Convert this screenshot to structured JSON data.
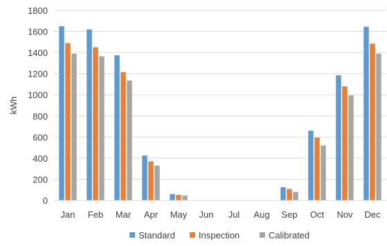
{
  "chart_data": {
    "type": "bar",
    "title": "",
    "xlabel": "",
    "ylabel": "kWh",
    "ylim": [
      0,
      1800
    ],
    "yticks": [
      0,
      200,
      400,
      600,
      800,
      1000,
      1200,
      1400,
      1600,
      1800
    ],
    "grid": true,
    "legend_position": "bottom",
    "categories": [
      "Jan",
      "Feb",
      "Mar",
      "Apr",
      "May",
      "Jun",
      "Jul",
      "Aug",
      "Sep",
      "Oct",
      "Nov",
      "Dec"
    ],
    "series": [
      {
        "name": "Standard",
        "color": "#5B9BD5",
        "values": [
          1650,
          1620,
          1375,
          425,
          60,
          0,
          0,
          0,
          125,
          660,
          1185,
          1645
        ]
      },
      {
        "name": "Inspection",
        "color": "#ED7D31",
        "values": [
          1490,
          1450,
          1215,
          370,
          52,
          0,
          0,
          0,
          108,
          595,
          1080,
          1485
        ]
      },
      {
        "name": "Calibrated",
        "color": "#A5A5A5",
        "values": [
          1390,
          1365,
          1135,
          330,
          45,
          0,
          0,
          0,
          80,
          520,
          995,
          1390
        ]
      }
    ]
  }
}
